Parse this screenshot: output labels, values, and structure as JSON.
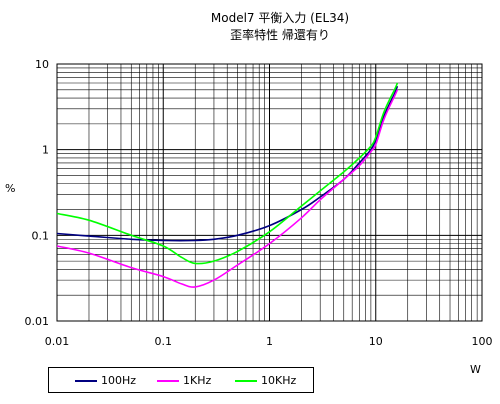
{
  "chart_data": {
    "type": "line",
    "title": "Model7  平衡入力 (EL34)",
    "subtitle": "歪率特性 帰還有り",
    "xlabel": "W",
    "ylabel": "%",
    "xscale": "log",
    "yscale": "log",
    "xlim": [
      0.01,
      100
    ],
    "ylim": [
      0.01,
      10
    ],
    "x_ticks": [
      "0.01",
      "0.1",
      "1",
      "10",
      "100"
    ],
    "y_ticks": [
      "0.01",
      "0.1",
      "1",
      "10"
    ],
    "grid": true,
    "legend_position": "bottom",
    "series": [
      {
        "name": "100Hz",
        "color": "#000080",
        "points": [
          [
            0.01,
            0.105
          ],
          [
            0.02,
            0.098
          ],
          [
            0.05,
            0.09
          ],
          [
            0.1,
            0.087
          ],
          [
            0.2,
            0.087
          ],
          [
            0.3,
            0.09
          ],
          [
            0.5,
            0.1
          ],
          [
            1,
            0.13
          ],
          [
            2,
            0.2
          ],
          [
            3,
            0.28
          ],
          [
            5,
            0.45
          ],
          [
            7,
            0.7
          ],
          [
            9,
            1.0
          ],
          [
            10,
            1.3
          ],
          [
            12,
            2.5
          ],
          [
            15,
            4.5
          ],
          [
            16,
            5.5
          ]
        ]
      },
      {
        "name": "1KHz",
        "color": "#ff00ff",
        "points": [
          [
            0.01,
            0.075
          ],
          [
            0.02,
            0.062
          ],
          [
            0.05,
            0.042
          ],
          [
            0.1,
            0.033
          ],
          [
            0.15,
            0.027
          ],
          [
            0.2,
            0.025
          ],
          [
            0.3,
            0.03
          ],
          [
            0.5,
            0.045
          ],
          [
            1,
            0.08
          ],
          [
            2,
            0.16
          ],
          [
            3,
            0.26
          ],
          [
            5,
            0.45
          ],
          [
            7,
            0.65
          ],
          [
            9,
            0.95
          ],
          [
            10,
            1.15
          ],
          [
            12,
            2.3
          ],
          [
            15,
            4.2
          ],
          [
            16,
            5.0
          ]
        ]
      },
      {
        "name": "10KHz",
        "color": "#00ff00",
        "points": [
          [
            0.01,
            0.18
          ],
          [
            0.02,
            0.15
          ],
          [
            0.05,
            0.1
          ],
          [
            0.1,
            0.075
          ],
          [
            0.15,
            0.055
          ],
          [
            0.2,
            0.047
          ],
          [
            0.3,
            0.05
          ],
          [
            0.5,
            0.065
          ],
          [
            1,
            0.11
          ],
          [
            2,
            0.22
          ],
          [
            3,
            0.33
          ],
          [
            5,
            0.55
          ],
          [
            7,
            0.8
          ],
          [
            9,
            1.1
          ],
          [
            10,
            1.4
          ],
          [
            12,
            2.8
          ],
          [
            15,
            5.0
          ],
          [
            16,
            6.0
          ]
        ]
      }
    ]
  }
}
